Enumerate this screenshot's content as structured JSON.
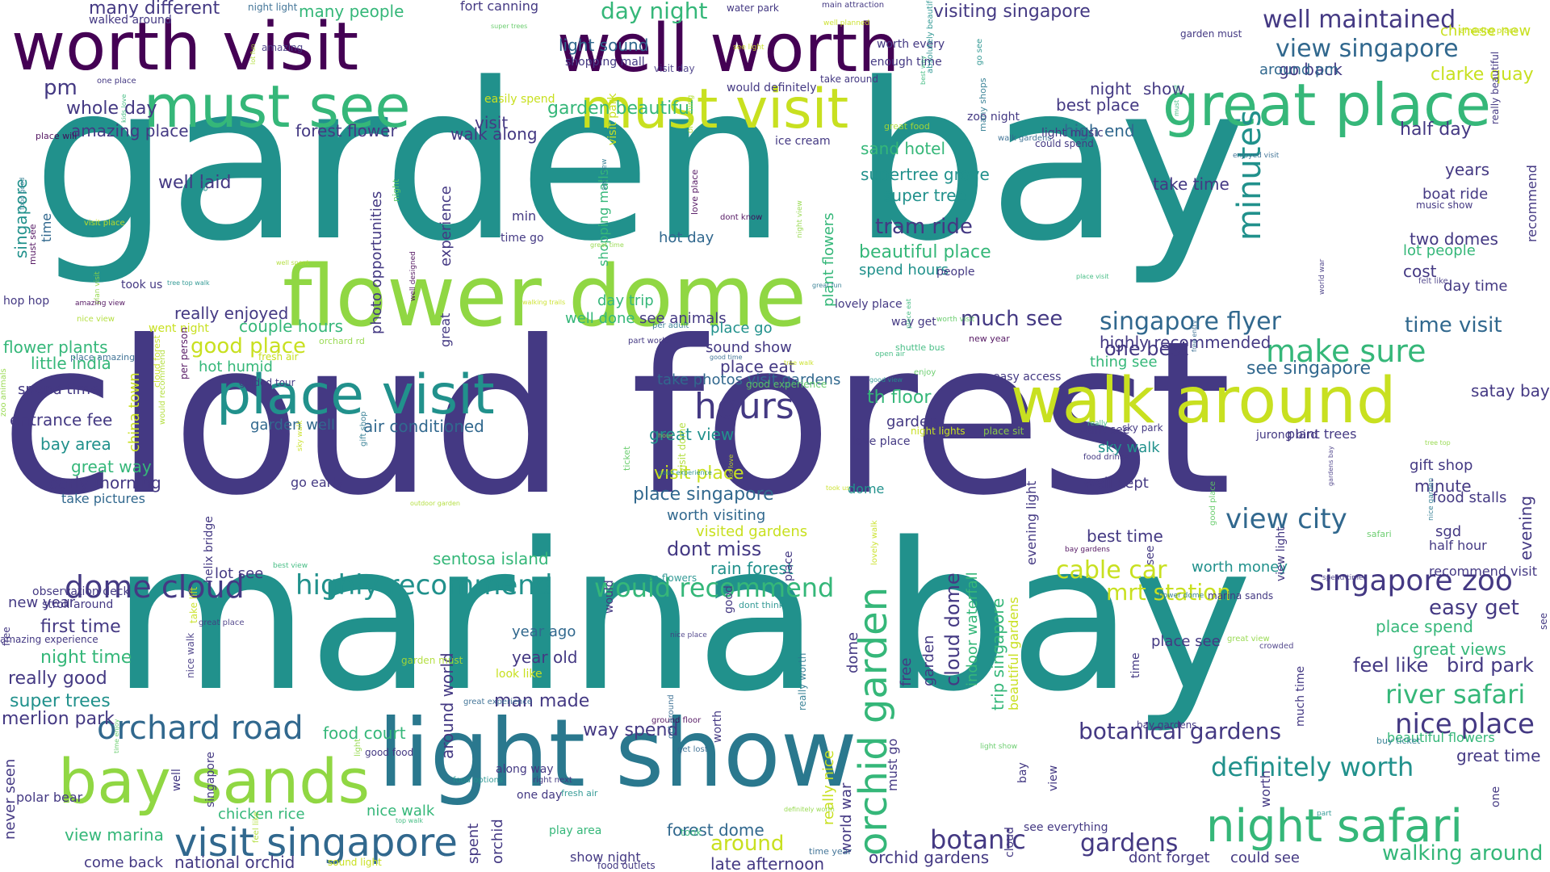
{
  "palette": [
    "#440154",
    "#443983",
    "#31688e",
    "#21918c",
    "#35b779",
    "#90d743",
    "#c8e020"
  ],
  "words": {
    "w0": "garden bay",
    "w1": "cloud forest",
    "w2": "marina bay",
    "w3": "flower dome",
    "w4": "light show",
    "w5": "worth visit",
    "w6": "well worth",
    "w7": "must see",
    "w8": "must visit",
    "w9": "great place",
    "w10": "walk around",
    "w11": "place visit",
    "w12": "bay sands",
    "w13": "night safari",
    "w14": "orchid garden",
    "w15": "visit singapore",
    "w16": "orchard road",
    "w17": "hours",
    "w18": "minutes",
    "w19": "make sure",
    "w20": "singapore zoo",
    "w21": "view singapore",
    "w22": "singapore flyer",
    "w23": "highly recommend",
    "w24": "would recommend",
    "w25": "dome cloud",
    "w26": "definitely worth",
    "w27": "nice place",
    "w28": "botanical gardens",
    "w29": "botanic gardens",
    "w30": "river safari",
    "w31": "cable car",
    "w32": "mrt station",
    "w33": "view city",
    "w34": "well maintained",
    "w35": "day night",
    "w36": "many different",
    "w37": "many people",
    "w38": "visiting singapore",
    "w39": "light sound",
    "w40": "garden beautiful",
    "w41": "amazing place",
    "w42": "forest flower",
    "w43": "whole day",
    "w44": "high end",
    "w45": "half day",
    "w46": "sand hotel",
    "w47": "supertree grove",
    "w48": "super tree",
    "w49": "tram ride",
    "w50": "take time",
    "w51": "boat ride",
    "w52": "two domes",
    "w53": "lot people",
    "w54": "time visit",
    "w55": "see singapore",
    "w56": "highly recommended",
    "w57": "one best",
    "w58": "much see",
    "w59": "couple hours",
    "w60": "really enjoyed",
    "w61": "good place",
    "w62": "hot humid",
    "w63": "little india",
    "w64": "flower plants",
    "w65": "spend time",
    "w66": "entrance fee",
    "w67": "garden well",
    "w68": "air conditioned",
    "w69": "great view",
    "w70": "visit place",
    "w71": "place singapore",
    "w72": "worth visiting",
    "w73": "dont miss",
    "w74": "visited gardens",
    "w75": "rain forest",
    "w76": "sentosa island",
    "w77": "early morning",
    "w78": "great way",
    "w79": "take pictures",
    "w80": "first time",
    "w81": "night time",
    "w82": "really good",
    "w83": "super trees",
    "w84": "merlion park",
    "w85": "chicken rice",
    "w86": "nice walk",
    "w87": "view marina",
    "w88": "come back",
    "w89": "national orchid",
    "w90": "food court",
    "w91": "man made",
    "w92": "year old",
    "w93": "year ago",
    "w94": "way spend",
    "w95": "forest dome",
    "w96": "around",
    "w97": "late afternoon",
    "w98": "orchid gardens",
    "w99": "gardens",
    "w100": "botanic",
    "w101": "see everything",
    "w102": "dont forget",
    "w103": "could see",
    "w104": "walking around",
    "w105": "great time",
    "w106": "bird park",
    "w107": "feel like",
    "w108": "easy get",
    "w109": "great views",
    "w110": "place spend",
    "w111": "beautiful flowers",
    "w112": "worth money",
    "w113": "place see",
    "w114": "best time",
    "w115": "well kept",
    "w116": "sky walk",
    "w117": "see animals",
    "w118": "sound show",
    "w119": "place eat",
    "w120": "take photos visit gardens",
    "w121": "beautiful place",
    "w122": "spend hours",
    "w123": "well laid",
    "w124": "well done",
    "w125": "day trip",
    "w126": "worth every",
    "w127": "enough time",
    "w128": "go back",
    "w129": "chinese new",
    "w130": "around pm",
    "w131": "clarke quay",
    "w132": "best place",
    "w133": "night",
    "w134": "show",
    "w135": "visit",
    "w136": "walk along",
    "w137": "pm",
    "w138": "th floor",
    "w139": "day time",
    "w140": "cost",
    "w141": "years",
    "w142": "visited place",
    "w143": "satay bay",
    "w144": "gift shop",
    "w145": "minute",
    "w146": "food stalls",
    "w147": "half hour",
    "w148": "sgd",
    "w149": "recommend visit",
    "w150": "tree grove",
    "w151": "fort canning",
    "w152": "water park",
    "w153": "walked around",
    "w154": "shopping mall",
    "w155": "ice cream",
    "w156": "hot day",
    "w157": "place go",
    "w158": "go early",
    "w159": "garden",
    "w160": "dome",
    "w161": "bay area",
    "w162": "helix bridge",
    "w163": "china town",
    "w164": "observation deck",
    "w165": "new year",
    "w166": "stroll around",
    "w167": "polar bear",
    "w168": "never seen",
    "w169": "evening light",
    "w170": "cloud dome",
    "w171": "indoor waterfall",
    "w172": "trip singapore",
    "w173": "beautiful gardens",
    "w174": "around world",
    "w175": "people",
    "w176": "view",
    "w177": "time",
    "w178": "see",
    "w179": "take",
    "w180": "sky park",
    "w181": "easy access",
    "w182": "night lights",
    "w183": "thing see",
    "w184": "one",
    "w185": "must go",
    "w186": "look like",
    "w187": "along way",
    "w188": "one day",
    "w189": "right next",
    "w190": "good food",
    "w191": "play area",
    "w192": "show night",
    "w193": "spent",
    "w194": "sound light",
    "w195": "food outlets",
    "w196": "many times",
    "w197": "orchid",
    "w198": "really beautiful",
    "w199": "lot see",
    "w200": "photo opportunities",
    "w201": "visit park",
    "w202": "garden must",
    "w203": "light music",
    "w204": "could spend",
    "w205": "well worth visit",
    "w206": "take around",
    "w207": "would definitely",
    "w208": "night see",
    "w209": "zoo night",
    "w210": "good",
    "w211": "jurong bird",
    "w212": "food drinks",
    "w213": "tree top",
    "w214": "much time",
    "w215": "recommend",
    "w216": "evening",
    "w217": "experience",
    "w218": "amazing experience",
    "w219": "marina sands",
    "w220": "bay gardens",
    "w221": "singapore",
    "w222": "view gardens",
    "w223": "worth",
    "w224": "time go",
    "w225": "place",
    "w226": "want see",
    "w227": "min",
    "w228": "paid",
    "w229": "music show",
    "w230": "really nice",
    "w231": "world war",
    "w232": "must do",
    "w233": "plant flowers",
    "w234": "see different",
    "w235": "shopping malls",
    "w236": "plenty see",
    "w237": "much better",
    "w238": "would like",
    "w239": "one place",
    "w240": "would",
    "w241": "great",
    "w242": "bay",
    "w243": "easily spend",
    "w244": "absolutely beautiful",
    "w245": "free",
    "w246": "cloud",
    "w247": "take photos",
    "w248": "hop hop",
    "w249": "took us",
    "w250": "went night",
    "w251": "fresh air",
    "w252": "guided tour",
    "w253": "well",
    "w254": "dome",
    "w255": "plant trees",
    "w256": "part world",
    "w257": "very hot",
    "w258": "lovely place",
    "w259": "way get",
    "w260": "love place",
    "w261": "view light",
    "w262": "main attraction",
    "w263": "cloud get"
  },
  "small_words": [
    "kid love",
    "hour",
    "open air",
    "go see",
    "walk gardens",
    "amazing",
    "per person",
    "ticket",
    "feel like",
    "great fun",
    "walking trails",
    "light",
    "shuttle bus",
    "enjoy",
    "place amazing",
    "felt like",
    "ground floor",
    "night",
    "garden must",
    "buy ticket",
    "well planned",
    "orchard rd",
    "top walk",
    "good view",
    "get lost",
    "nice walk",
    "place will",
    "light show",
    "lot fun",
    "really worth",
    "see light",
    "plan visit",
    "must visit",
    "absolutely beautiful",
    "good time",
    "nice place",
    "bay gardens",
    "time enjoy",
    "well spent",
    "per adult",
    "tree walk",
    "place sit",
    "took",
    "dont think",
    "time year",
    "visit day",
    "new year",
    "good experience",
    "nice view",
    "many shops",
    "sky walk",
    "tree top",
    "best view",
    "food options",
    "enjoyed visit",
    "gardens bay",
    "dont know",
    "super trees",
    "visit dome",
    "see view",
    "take lift",
    "night view",
    "really",
    "part",
    "free entry",
    "great place",
    "well designed",
    "safari",
    "outdoor garden",
    "nice garden",
    "took us",
    "great view",
    "place eat",
    "fresh air",
    "get around",
    "world war",
    "amazing view",
    "good place",
    "one thing",
    "gift shop",
    "lovely walk",
    "zoo animals",
    "best way",
    "see flowers",
    "night light",
    "crowded",
    "must see",
    "worth visit",
    "great food",
    "food good",
    "visit place",
    "definitely worth",
    "kids love",
    "tree top walk",
    "great experience",
    "spend time",
    "love place",
    "enjoy",
    "would recommend",
    "flower dome",
    "cloud forest",
    "great time",
    "place visit",
    "good experience"
  ],
  "small_colors": [
    "#c8e020",
    "#90d743",
    "#35b779",
    "#21918c",
    "#31688e",
    "#443983",
    "#440154",
    "#5ec962",
    "#addc30",
    "#2a788e"
  ]
}
